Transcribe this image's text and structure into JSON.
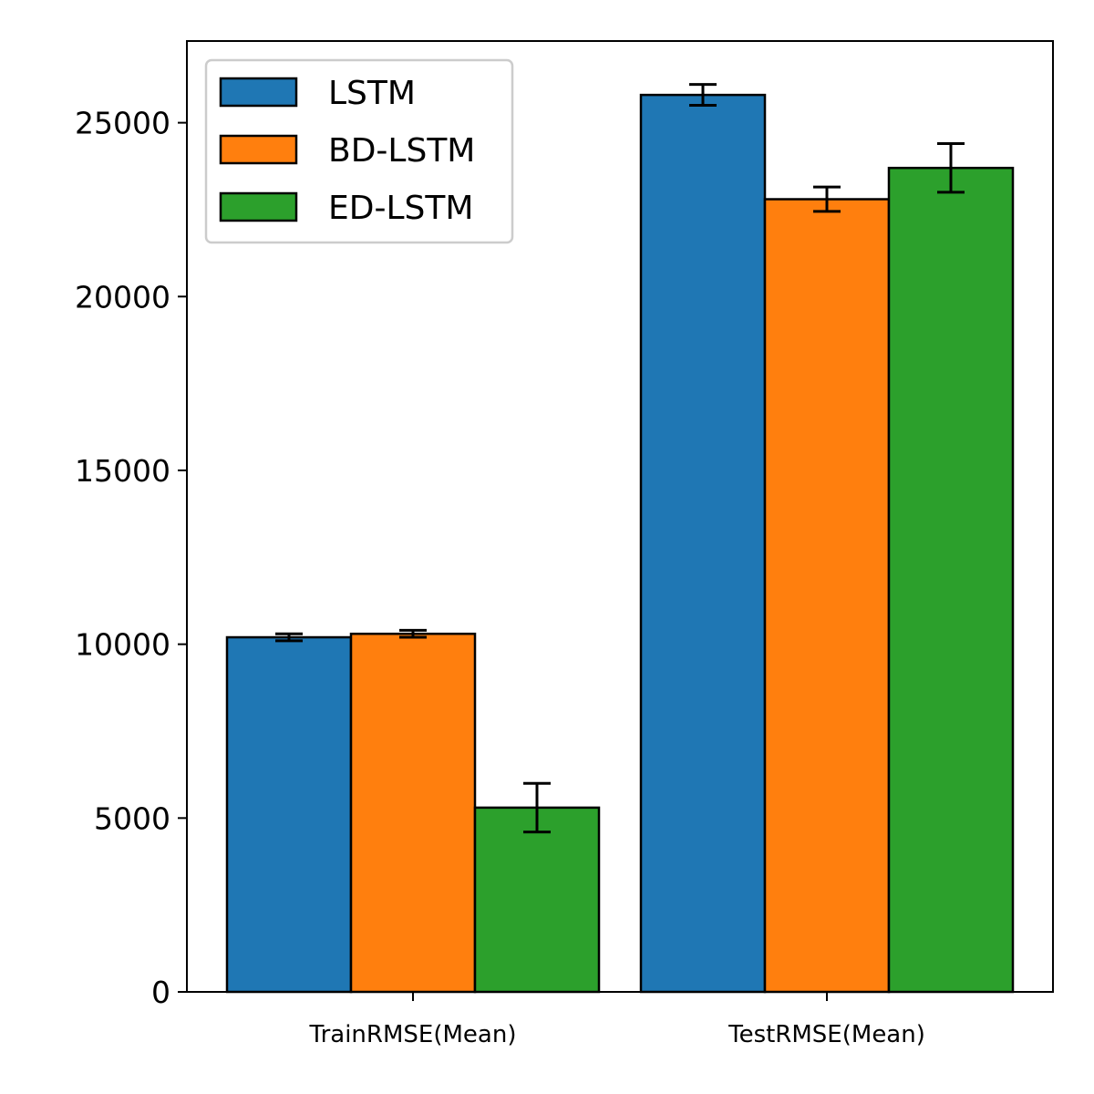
{
  "chart_data": {
    "type": "bar",
    "title": "",
    "xlabel": "",
    "ylabel": "",
    "categories": [
      "TrainRMSE(Mean)",
      "TestRMSE(Mean)"
    ],
    "series": [
      {
        "name": "LSTM",
        "color": "#1f77b4",
        "values": [
          10200,
          25800
        ],
        "errors": [
          100,
          300
        ]
      },
      {
        "name": "BD-LSTM",
        "color": "#ff7f0e",
        "values": [
          10300,
          22800
        ],
        "errors": [
          100,
          350
        ]
      },
      {
        "name": "ED-LSTM",
        "color": "#2ca02c",
        "values": [
          5300,
          23700
        ],
        "errors": [
          700,
          700
        ]
      }
    ],
    "ylim": [
      0,
      27350
    ],
    "yticks": [
      0,
      5000,
      10000,
      15000,
      20000,
      25000
    ],
    "ytick_labels": [
      "0",
      "5000",
      "10000",
      "15000",
      "20000",
      "25000"
    ],
    "grid": false,
    "legend_position": "top-left",
    "bar_edge_color": "#000000",
    "error_bar_color": "#000000"
  }
}
